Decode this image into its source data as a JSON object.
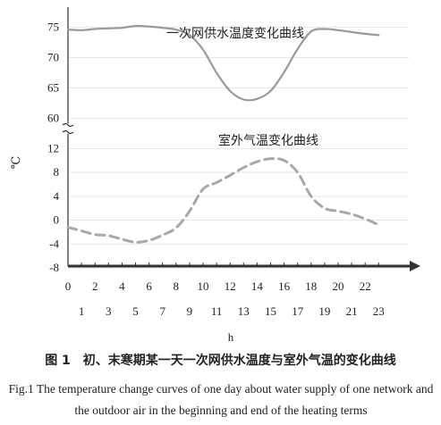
{
  "chart_data": {
    "type": "line",
    "xlabel": "h",
    "ylabel": "℃",
    "x_ticks_even": [
      "0",
      "2",
      "4",
      "6",
      "8",
      "10",
      "12",
      "14",
      "16",
      "18",
      "20",
      "22"
    ],
    "x_ticks_odd": [
      "1",
      "3",
      "5",
      "7",
      "9",
      "11",
      "13",
      "15",
      "17",
      "19",
      "21",
      "23"
    ],
    "xlim": [
      0,
      24
    ],
    "upper_axis": {
      "ylim": [
        57,
        78
      ],
      "ticks": [
        "60",
        "65",
        "70",
        "75"
      ]
    },
    "lower_axis": {
      "ylim": [
        -8,
        14
      ],
      "ticks": [
        "-8",
        "-4",
        "0",
        "4",
        "8",
        "12"
      ]
    },
    "series": [
      {
        "name": "一次网供水温度变化曲线",
        "axis": "upper",
        "style": "solid",
        "color": "#9a9a9a",
        "x": [
          0,
          1,
          2,
          3,
          4,
          5,
          6,
          7,
          8,
          9,
          10,
          11,
          12,
          13,
          14,
          15,
          16,
          17,
          18,
          19,
          20,
          21,
          22,
          23
        ],
        "values": [
          74.6,
          74.5,
          74.7,
          74.8,
          74.9,
          75.2,
          75.1,
          74.9,
          74.6,
          73.7,
          71.3,
          67.5,
          64.5,
          63.1,
          63.2,
          64.5,
          67.6,
          71.4,
          74.3,
          74.7,
          74.5,
          74.2,
          73.9,
          73.7
        ]
      },
      {
        "name": "室外气温变化曲线",
        "axis": "lower",
        "style": "dashed",
        "color": "#a8a8a8",
        "x": [
          0,
          1,
          2,
          3,
          4,
          5,
          6,
          7,
          8,
          9,
          10,
          11,
          12,
          13,
          14,
          15,
          16,
          17,
          18,
          19,
          20,
          21,
          22,
          23
        ],
        "values": [
          -1.2,
          -1.8,
          -2.4,
          -2.6,
          -3.2,
          -3.7,
          -3.4,
          -2.5,
          -1.3,
          1.5,
          5.2,
          6.3,
          7.5,
          8.8,
          9.8,
          10.3,
          10.0,
          8.0,
          4.0,
          2.0,
          1.5,
          1.0,
          0.2,
          -0.8
        ]
      }
    ]
  },
  "caption": {
    "cn": "图 1　初、末寒期某一天一次网供水温度与室外气温的变化曲线",
    "en": "Fig.1 The temperature change curves of one day about water supply of one network and the outdoor air in the beginning and end of the heating terms"
  }
}
